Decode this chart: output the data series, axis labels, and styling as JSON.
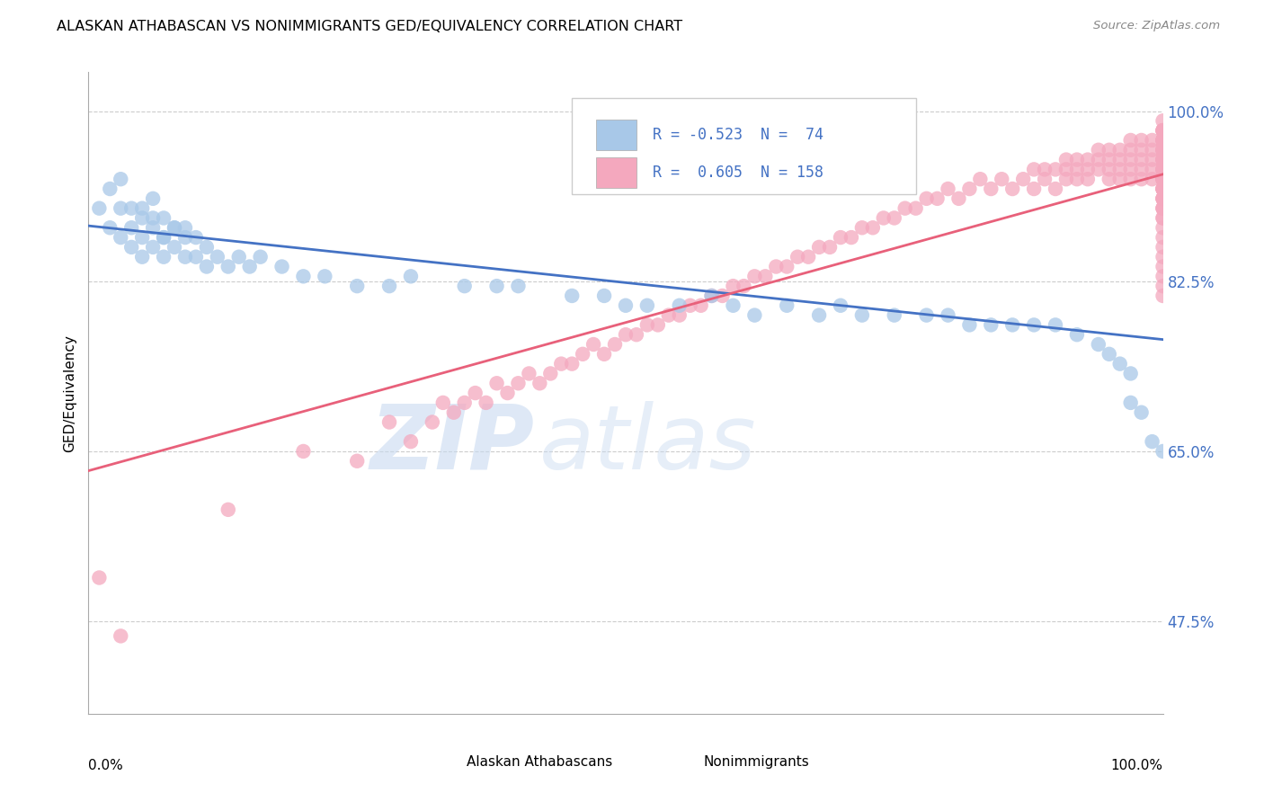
{
  "title": "ALASKAN ATHABASCAN VS NONIMMIGRANTS GED/EQUIVALENCY CORRELATION CHART",
  "source": "Source: ZipAtlas.com",
  "ylabel": "GED/Equivalency",
  "ytick_labels": [
    "100.0%",
    "82.5%",
    "65.0%",
    "47.5%"
  ],
  "ytick_values": [
    1.0,
    0.825,
    0.65,
    0.475
  ],
  "xlim": [
    0.0,
    1.0
  ],
  "ylim": [
    0.38,
    1.04
  ],
  "blue_color": "#a8c8e8",
  "pink_color": "#f4a8be",
  "blue_line_color": "#4472c4",
  "pink_line_color": "#e8607a",
  "blue_trend_y_start": 0.882,
  "blue_trend_y_end": 0.765,
  "pink_trend_y_start": 0.63,
  "pink_trend_y_end": 0.935,
  "legend_label1": "Alaskan Athabascans",
  "legend_label2": "Nonimmigrants",
  "blue_x": [
    0.01,
    0.02,
    0.02,
    0.03,
    0.03,
    0.03,
    0.04,
    0.04,
    0.04,
    0.05,
    0.05,
    0.05,
    0.05,
    0.06,
    0.06,
    0.06,
    0.06,
    0.07,
    0.07,
    0.07,
    0.07,
    0.08,
    0.08,
    0.08,
    0.09,
    0.09,
    0.09,
    0.1,
    0.1,
    0.11,
    0.11,
    0.12,
    0.13,
    0.14,
    0.15,
    0.16,
    0.18,
    0.2,
    0.22,
    0.25,
    0.28,
    0.3,
    0.35,
    0.38,
    0.4,
    0.45,
    0.48,
    0.5,
    0.52,
    0.55,
    0.58,
    0.6,
    0.62,
    0.65,
    0.68,
    0.7,
    0.72,
    0.75,
    0.78,
    0.8,
    0.82,
    0.84,
    0.86,
    0.88,
    0.9,
    0.92,
    0.94,
    0.95,
    0.96,
    0.97,
    0.97,
    0.98,
    0.99,
    1.0
  ],
  "blue_y": [
    0.9,
    0.92,
    0.88,
    0.9,
    0.87,
    0.93,
    0.88,
    0.9,
    0.86,
    0.89,
    0.87,
    0.9,
    0.85,
    0.88,
    0.91,
    0.86,
    0.89,
    0.87,
    0.89,
    0.85,
    0.87,
    0.88,
    0.86,
    0.88,
    0.87,
    0.85,
    0.88,
    0.87,
    0.85,
    0.86,
    0.84,
    0.85,
    0.84,
    0.85,
    0.84,
    0.85,
    0.84,
    0.83,
    0.83,
    0.82,
    0.82,
    0.83,
    0.82,
    0.82,
    0.82,
    0.81,
    0.81,
    0.8,
    0.8,
    0.8,
    0.81,
    0.8,
    0.79,
    0.8,
    0.79,
    0.8,
    0.79,
    0.79,
    0.79,
    0.79,
    0.78,
    0.78,
    0.78,
    0.78,
    0.78,
    0.77,
    0.76,
    0.75,
    0.74,
    0.73,
    0.7,
    0.69,
    0.66,
    0.65
  ],
  "pink_x": [
    0.01,
    0.03,
    0.13,
    0.2,
    0.25,
    0.28,
    0.3,
    0.32,
    0.33,
    0.34,
    0.35,
    0.36,
    0.37,
    0.38,
    0.39,
    0.4,
    0.41,
    0.42,
    0.43,
    0.44,
    0.45,
    0.46,
    0.47,
    0.48,
    0.49,
    0.5,
    0.51,
    0.52,
    0.53,
    0.54,
    0.55,
    0.56,
    0.57,
    0.58,
    0.59,
    0.6,
    0.61,
    0.62,
    0.63,
    0.64,
    0.65,
    0.66,
    0.67,
    0.68,
    0.69,
    0.7,
    0.71,
    0.72,
    0.73,
    0.74,
    0.75,
    0.76,
    0.77,
    0.78,
    0.79,
    0.8,
    0.81,
    0.82,
    0.83,
    0.84,
    0.85,
    0.86,
    0.87,
    0.88,
    0.88,
    0.89,
    0.89,
    0.9,
    0.9,
    0.91,
    0.91,
    0.91,
    0.92,
    0.92,
    0.92,
    0.93,
    0.93,
    0.93,
    0.94,
    0.94,
    0.94,
    0.95,
    0.95,
    0.95,
    0.95,
    0.96,
    0.96,
    0.96,
    0.96,
    0.97,
    0.97,
    0.97,
    0.97,
    0.97,
    0.98,
    0.98,
    0.98,
    0.98,
    0.98,
    0.99,
    0.99,
    0.99,
    0.99,
    0.99,
    1.0,
    1.0,
    1.0,
    1.0,
    1.0,
    1.0,
    1.0,
    1.0,
    1.0,
    1.0,
    1.0,
    1.0,
    1.0,
    1.0,
    1.0,
    1.0,
    1.0,
    1.0,
    1.0,
    1.0,
    1.0,
    1.0,
    1.0,
    1.0,
    1.0,
    1.0,
    1.0,
    1.0,
    1.0,
    1.0,
    1.0,
    1.0,
    1.0,
    1.0,
    1.0,
    1.0,
    1.0,
    1.0,
    1.0,
    1.0,
    1.0,
    1.0,
    1.0,
    1.0,
    1.0,
    1.0,
    1.0,
    1.0,
    1.0,
    1.0,
    1.0,
    1.0
  ],
  "pink_y": [
    0.52,
    0.46,
    0.59,
    0.65,
    0.64,
    0.68,
    0.66,
    0.68,
    0.7,
    0.69,
    0.7,
    0.71,
    0.7,
    0.72,
    0.71,
    0.72,
    0.73,
    0.72,
    0.73,
    0.74,
    0.74,
    0.75,
    0.76,
    0.75,
    0.76,
    0.77,
    0.77,
    0.78,
    0.78,
    0.79,
    0.79,
    0.8,
    0.8,
    0.81,
    0.81,
    0.82,
    0.82,
    0.83,
    0.83,
    0.84,
    0.84,
    0.85,
    0.85,
    0.86,
    0.86,
    0.87,
    0.87,
    0.88,
    0.88,
    0.89,
    0.89,
    0.9,
    0.9,
    0.91,
    0.91,
    0.92,
    0.91,
    0.92,
    0.93,
    0.92,
    0.93,
    0.92,
    0.93,
    0.94,
    0.92,
    0.94,
    0.93,
    0.94,
    0.92,
    0.95,
    0.94,
    0.93,
    0.95,
    0.94,
    0.93,
    0.95,
    0.94,
    0.93,
    0.96,
    0.95,
    0.94,
    0.96,
    0.95,
    0.94,
    0.93,
    0.96,
    0.95,
    0.94,
    0.93,
    0.97,
    0.96,
    0.95,
    0.94,
    0.93,
    0.97,
    0.96,
    0.95,
    0.94,
    0.93,
    0.97,
    0.96,
    0.95,
    0.94,
    0.93,
    0.98,
    0.97,
    0.96,
    0.95,
    0.94,
    0.93,
    0.92,
    0.98,
    0.97,
    0.96,
    0.95,
    0.94,
    0.93,
    0.92,
    0.91,
    0.99,
    0.98,
    0.97,
    0.96,
    0.95,
    0.94,
    0.93,
    0.92,
    0.91,
    0.9,
    0.98,
    0.97,
    0.96,
    0.95,
    0.94,
    0.93,
    0.92,
    0.91,
    0.9,
    0.89,
    0.97,
    0.96,
    0.95,
    0.94,
    0.93,
    0.92,
    0.91,
    0.9,
    0.89,
    0.88,
    0.87,
    0.86,
    0.85,
    0.84,
    0.83,
    0.82,
    0.81
  ]
}
